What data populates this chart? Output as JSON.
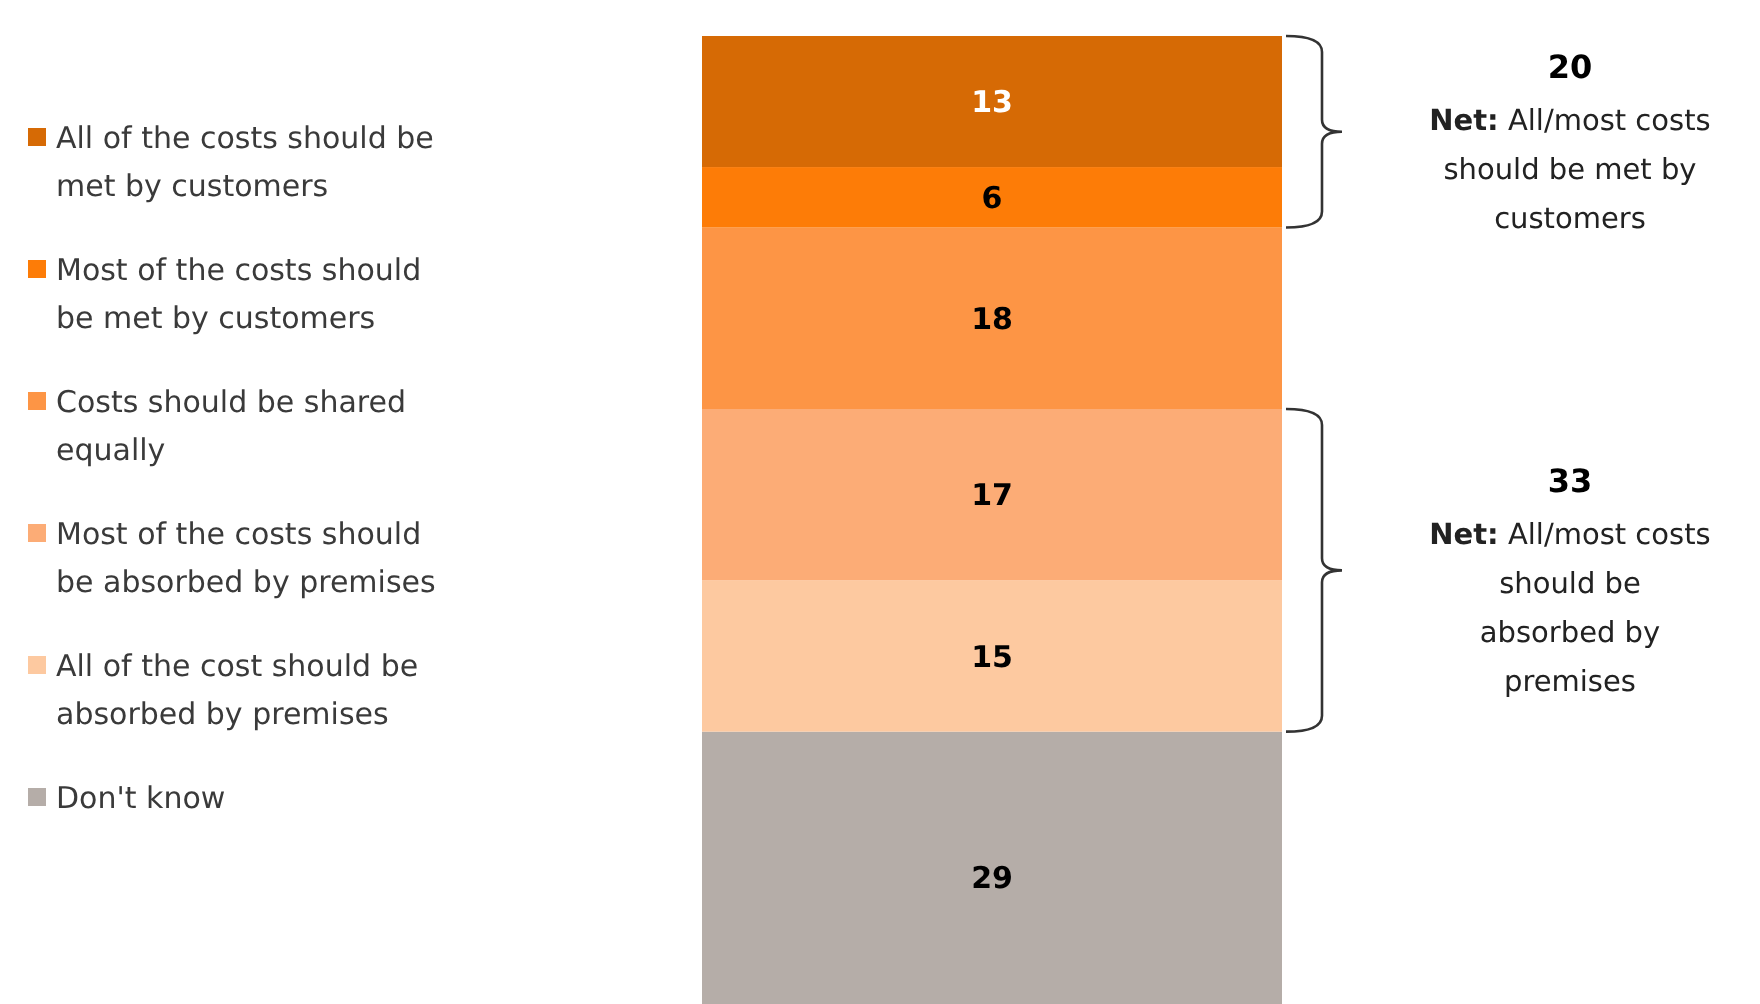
{
  "chart_data": {
    "type": "bar",
    "stacked": true,
    "categories": [
      null
    ],
    "data_labels": true,
    "legend": "left",
    "series": [
      {
        "name": "Don't know",
        "color": "#b5ada8",
        "values": [
          29
        ]
      },
      {
        "name": "All of the cost should be absorbed by premises",
        "color": "#fdc9a0",
        "values": [
          15
        ]
      },
      {
        "name": "Most of the costs should be absorbed by premises",
        "color": "#fcac76",
        "values": [
          17
        ]
      },
      {
        "name": "Costs should be shared equally",
        "color": "#fd9545",
        "values": [
          18
        ]
      },
      {
        "name": "Most of the costs should be met by customers",
        "color": "#fd7c07",
        "values": [
          6
        ]
      },
      {
        "name": "All of the costs should be met by customers",
        "color": "#d66a05",
        "values": [
          13
        ]
      }
    ],
    "annotations": [
      "20",
      "Net: All/most costs\nshould be met by\ncustomers",
      "33",
      "Net: All/most costs\nshould be\nabsorbed by\npremises"
    ]
  }
}
